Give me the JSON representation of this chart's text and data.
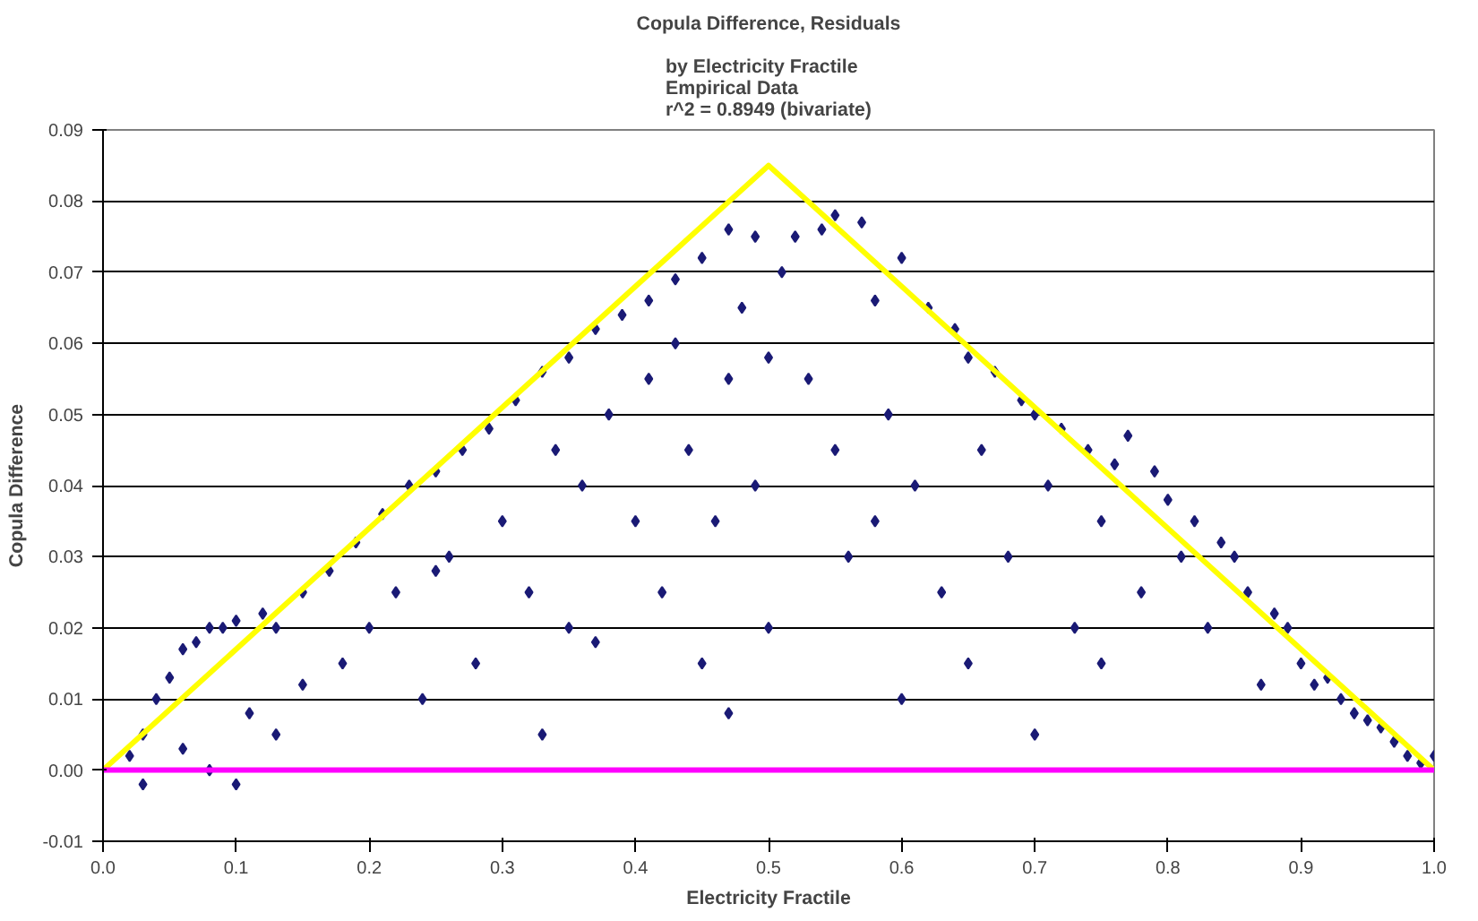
{
  "chart_data": {
    "type": "scatter",
    "title": "Copula Difference, Residuals",
    "subtitle": "by Electricity Fractile\nEmpirical Data\nr^2 = 0.8949 (bivariate)",
    "xlabel": "Electricity Fractile",
    "ylabel": "Copula Difference",
    "xlim": [
      0,
      1
    ],
    "ylim": [
      -0.01,
      0.09
    ],
    "xticks": [
      {
        "value": 0,
        "label": "0.0"
      },
      {
        "value": 0.1,
        "label": "0.1"
      },
      {
        "value": 0.2,
        "label": "0.2"
      },
      {
        "value": 0.3,
        "label": "0.3"
      },
      {
        "value": 0.4,
        "label": "0.4"
      },
      {
        "value": 0.5,
        "label": "0.5"
      },
      {
        "value": 0.6,
        "label": "0.6"
      },
      {
        "value": 0.7,
        "label": "0.7"
      },
      {
        "value": 0.8,
        "label": "0.8"
      },
      {
        "value": 0.9,
        "label": "0.9"
      },
      {
        "value": 1,
        "label": "1.0"
      }
    ],
    "yticks": [
      {
        "value": -0.01,
        "label": "-0.01"
      },
      {
        "value": 0,
        "label": "0.00"
      },
      {
        "value": 0.01,
        "label": "0.01"
      },
      {
        "value": 0.02,
        "label": "0.02"
      },
      {
        "value": 0.03,
        "label": "0.03"
      },
      {
        "value": 0.04,
        "label": "0.04"
      },
      {
        "value": 0.05,
        "label": "0.05"
      },
      {
        "value": 0.06,
        "label": "0.06"
      },
      {
        "value": 0.07,
        "label": "0.07"
      },
      {
        "value": 0.08,
        "label": "0.08"
      },
      {
        "value": 0.09,
        "label": "0.09"
      }
    ],
    "grid": "y",
    "series": [
      {
        "color": "#1a1a75",
        "marker": "diamond",
        "x": [
          0.02,
          0.03,
          0.04,
          0.05,
          0.06,
          0.07,
          0.08,
          0.09,
          0.1,
          0.12,
          0.13,
          0.15,
          0.17,
          0.19,
          0.21,
          0.23,
          0.25,
          0.27,
          0.29,
          0.31,
          0.33,
          0.35,
          0.37,
          0.39,
          0.41,
          0.43,
          0.45,
          0.47,
          0.49,
          0.03,
          0.06,
          0.08,
          0.1,
          0.11,
          0.13,
          0.15,
          0.18,
          0.2,
          0.22,
          0.24,
          0.26,
          0.28,
          0.3,
          0.32,
          0.33,
          0.34,
          0.36,
          0.37,
          0.38,
          0.4,
          0.41,
          0.42,
          0.43,
          0.44,
          0.45,
          0.46,
          0.47,
          0.48,
          0.49,
          0.5,
          0.5,
          0.51,
          0.52,
          0.53,
          0.54,
          0.55,
          0.55,
          0.56,
          0.57,
          0.58,
          0.59,
          0.6,
          0.61,
          0.62,
          0.63,
          0.64,
          0.65,
          0.66,
          0.67,
          0.68,
          0.69,
          0.7,
          0.71,
          0.72,
          0.73,
          0.74,
          0.75,
          0.76,
          0.77,
          0.78,
          0.79,
          0.8,
          0.81,
          0.82,
          0.83,
          0.84,
          0.85,
          0.86,
          0.87,
          0.88,
          0.89,
          0.9,
          0.91,
          0.92,
          0.93,
          0.94,
          0.95,
          0.96,
          0.97,
          0.98,
          0.99,
          1.0,
          0.6,
          0.7,
          0.47,
          0.35,
          0.25,
          0.58,
          0.75,
          0.65
        ],
        "values": [
          0.002,
          0.005,
          0.01,
          0.013,
          0.017,
          0.018,
          0.02,
          0.02,
          0.021,
          0.022,
          0.02,
          0.025,
          0.028,
          0.032,
          0.036,
          0.04,
          0.042,
          0.045,
          0.048,
          0.052,
          0.056,
          0.058,
          0.062,
          0.064,
          0.066,
          0.069,
          0.072,
          0.076,
          0.075,
          -0.002,
          0.003,
          0.0,
          -0.002,
          0.008,
          0.005,
          0.012,
          0.015,
          0.02,
          0.025,
          0.01,
          0.03,
          0.015,
          0.035,
          0.025,
          0.005,
          0.045,
          0.04,
          0.018,
          0.05,
          0.035,
          0.055,
          0.025,
          0.06,
          0.045,
          0.015,
          0.035,
          0.055,
          0.065,
          0.04,
          0.058,
          0.02,
          0.07,
          0.075,
          0.055,
          0.076,
          0.078,
          0.045,
          0.03,
          0.077,
          0.066,
          0.05,
          0.072,
          0.04,
          0.065,
          0.025,
          0.062,
          0.058,
          0.045,
          0.056,
          0.03,
          0.052,
          0.05,
          0.04,
          0.048,
          0.02,
          0.045,
          0.035,
          0.043,
          0.047,
          0.025,
          0.042,
          0.038,
          0.03,
          0.035,
          0.02,
          0.032,
          0.03,
          0.025,
          0.012,
          0.022,
          0.02,
          0.015,
          0.012,
          0.013,
          0.01,
          0.008,
          0.007,
          0.006,
          0.004,
          0.002,
          0.001,
          0.002,
          0.01,
          0.005,
          0.008,
          0.02,
          0.028,
          0.035,
          0.015,
          0.015
        ]
      },
      {
        "type": "line",
        "color": "#ffff00",
        "x": [
          0,
          0.5,
          1
        ],
        "values": [
          0,
          0.085,
          0
        ]
      },
      {
        "type": "line",
        "color": "#ff00ff",
        "x": [
          0,
          1
        ],
        "values": [
          0,
          0
        ]
      }
    ]
  }
}
